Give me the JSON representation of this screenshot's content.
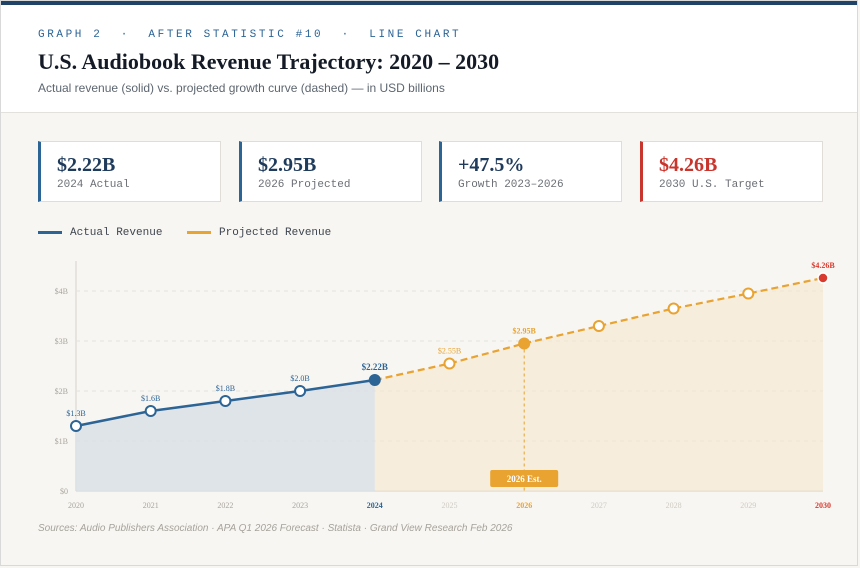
{
  "header": {
    "eyebrow": "GRAPH 2  ·  AFTER STATISTIC #10  ·  LINE CHART",
    "title": "U.S. Audiobook Revenue Trajectory: 2020 – 2030",
    "subtitle": "Actual revenue (solid) vs. projected growth curve (dashed) — in USD billions"
  },
  "kpis": [
    {
      "value": "$2.22B",
      "label": "2024 Actual"
    },
    {
      "value": "$2.95B",
      "label": "2026 Projected"
    },
    {
      "value": "+47.5%",
      "label": "Growth 2023–2026"
    },
    {
      "value": "$4.26B",
      "label": "2030 U.S. Target"
    }
  ],
  "legend": {
    "actual": "Actual Revenue",
    "projected": "Projected Revenue"
  },
  "colors": {
    "actual": "#2c6496",
    "projected": "#e8a331",
    "target": "#d93a2e"
  },
  "chart_data": {
    "type": "line",
    "x": [
      "2020",
      "2021",
      "2022",
      "2023",
      "2024",
      "2025",
      "2026",
      "2027",
      "2028",
      "2029",
      "2030"
    ],
    "series": [
      {
        "name": "Actual Revenue",
        "x": [
          "2020",
          "2021",
          "2022",
          "2023",
          "2024"
        ],
        "values": [
          1.3,
          1.6,
          1.8,
          2.0,
          2.22
        ],
        "labels": [
          "$1.3B",
          "$1.6B",
          "$1.8B",
          "$2.0B",
          "$2.22B"
        ]
      },
      {
        "name": "Projected Revenue",
        "x": [
          "2024",
          "2025",
          "2026",
          "2027",
          "2028",
          "2029",
          "2030"
        ],
        "values": [
          2.22,
          2.55,
          2.95,
          3.3,
          3.65,
          3.95,
          4.26
        ],
        "labels": [
          "",
          "$2.55B",
          "$2.95B",
          "",
          "",
          "",
          "$4.26B"
        ]
      }
    ],
    "yticks": [
      "$0",
      "$1B",
      "$2B",
      "$3B",
      "$4B"
    ],
    "ylim": [
      0,
      4.6
    ],
    "annotation": "2026 Est.",
    "grid": true,
    "legend_position": "top-left"
  },
  "source": "Sources: Audio Publishers Association · APA Q1 2026 Forecast · Statista · Grand View Research Feb 2026"
}
